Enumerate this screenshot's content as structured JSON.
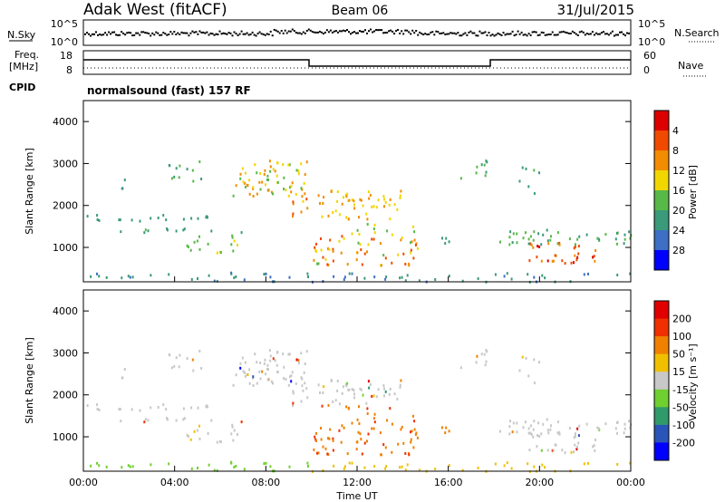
{
  "header": {
    "station": "Adak West (fitACF)",
    "beam": "Beam 06",
    "date": "31/Jul/2015"
  },
  "noise_panel": {
    "left_label": "N.Sky",
    "right_label": "N.Search",
    "left_ticks": [
      "10^5",
      "10^0"
    ],
    "right_ticks": [
      "10^5",
      "10^0"
    ]
  },
  "freq_panel": {
    "left_label_1": "Freq.",
    "left_label_2": "[MHz]",
    "right_label": "Nave",
    "left_ticks": [
      "18",
      "8"
    ],
    "right_ticks": [
      "60",
      "0"
    ],
    "cpid_label": "CPID",
    "cpid_text": "normalsound (fast) 157 RF"
  },
  "chart_data": [
    {
      "type": "heatmap",
      "name": "power",
      "ylabel": "Slant Range [km]",
      "ylim": [
        180,
        4500
      ],
      "yticks": [
        "1000",
        "2000",
        "3000",
        "4000"
      ],
      "xlim_hours": [
        0,
        24
      ],
      "colorbar": {
        "label": "Power [dB]",
        "ticks": [
          "4",
          "8",
          "12",
          "16",
          "20",
          "24",
          "28"
        ],
        "colors": [
          "#0000ff",
          "#3d6fc4",
          "#3a9a7a",
          "#58b848",
          "#f2d600",
          "#f28c00",
          "#f04a00",
          "#dd0000"
        ]
      }
    },
    {
      "type": "heatmap",
      "name": "velocity",
      "ylabel": "Slant Range [km]",
      "xlabel": "Time UT",
      "ylim": [
        180,
        4500
      ],
      "yticks": [
        "1000",
        "2000",
        "3000",
        "4000"
      ],
      "xticks": [
        "00:00",
        "04:00",
        "08:00",
        "12:00",
        "16:00",
        "20:00",
        "00:00"
      ],
      "colorbar": {
        "label": "Velocity [m s⁻¹]",
        "ticks": [
          "200",
          "100",
          "50",
          "15",
          "-15",
          "-50",
          "-100",
          "-200"
        ],
        "colors": [
          "#0000ff",
          "#2a55b8",
          "#2f9a6a",
          "#6fd030",
          "#c8c8c8",
          "#f0c000",
          "#f08000",
          "#f03000",
          "#e00000"
        ]
      }
    }
  ]
}
